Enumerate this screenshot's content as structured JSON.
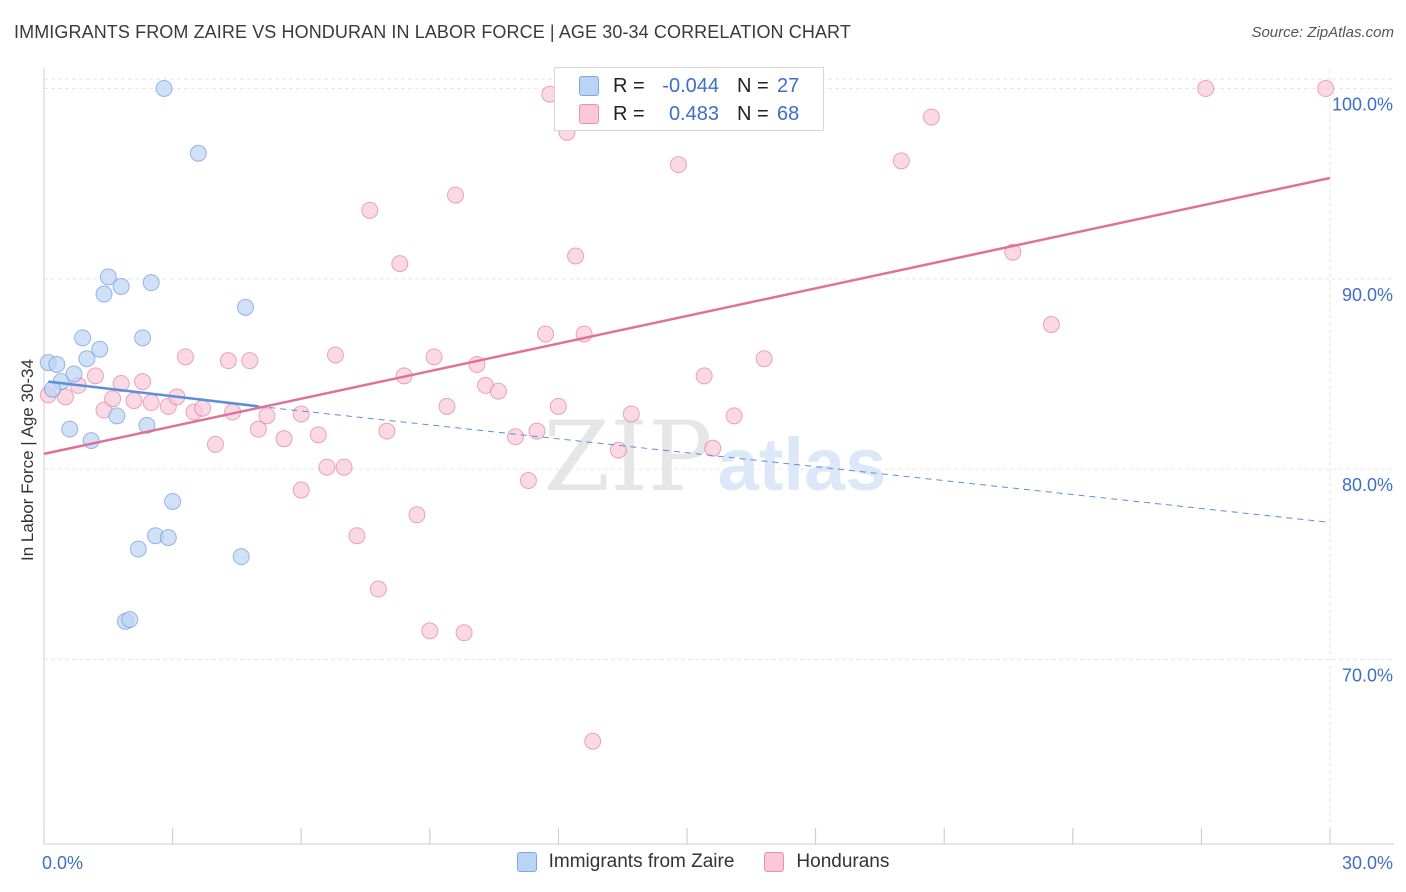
{
  "title": "IMMIGRANTS FROM ZAIRE VS HONDURAN IN LABOR FORCE | AGE 30-34 CORRELATION CHART",
  "source": "Source: ZipAtlas.com",
  "watermark": {
    "zip": "ZIP",
    "atlas": "atlas"
  },
  "legend": {
    "rows": [
      {
        "r_label": "R =",
        "r_value": "-0.044",
        "n_label": "N =",
        "n_value": "27",
        "color": "#7aa8e6",
        "fill": "#bcd4f4"
      },
      {
        "r_label": "R =",
        "r_value": "0.483",
        "n_label": "N =",
        "n_value": "68",
        "color": "#ef8fb0",
        "fill": "#f9c9d9"
      }
    ]
  },
  "bottom_legend": [
    "Immigrants from Zaire",
    "Hondurans"
  ],
  "chart_data": {
    "type": "scatter",
    "title": "IMMIGRANTS FROM ZAIRE VS HONDURAN IN LABOR FORCE | AGE 30-34 CORRELATION CHART",
    "xlabel": "",
    "ylabel": "In Labor Force | Age 30-34",
    "xlim": [
      0,
      30
    ],
    "ylim": [
      60.3,
      101.5
    ],
    "x_tick_labels": [
      {
        "value": 0,
        "label": "0.0%"
      },
      {
        "value": 30,
        "label": "30.0%"
      }
    ],
    "y_tick_labels": [
      {
        "value": 70,
        "label": "70.0%"
      },
      {
        "value": 80,
        "label": "80.0%"
      },
      {
        "value": 90,
        "label": "90.0%"
      },
      {
        "value": 100,
        "label": "100.0%"
      }
    ],
    "grid": true,
    "series": [
      {
        "name": "Immigrants from Zaire",
        "color": "#5b8fd9",
        "fill": "#bcd4f4",
        "trend": {
          "x": [
            0.1,
            5.0
          ],
          "y": [
            84.6,
            83.3
          ],
          "extended_to": [
            30.0,
            77.2
          ]
        },
        "points": [
          [
            0.1,
            85.6
          ],
          [
            0.3,
            85.5
          ],
          [
            0.4,
            84.6
          ],
          [
            0.6,
            82.1
          ],
          [
            0.7,
            85.0
          ],
          [
            0.9,
            86.9
          ],
          [
            1.0,
            85.8
          ],
          [
            1.1,
            81.5
          ],
          [
            1.3,
            86.3
          ],
          [
            1.4,
            89.2
          ],
          [
            1.5,
            90.1
          ],
          [
            1.7,
            82.8
          ],
          [
            1.8,
            89.6
          ],
          [
            1.9,
            72.0
          ],
          [
            2.0,
            72.1
          ],
          [
            2.2,
            75.8
          ],
          [
            2.3,
            86.9
          ],
          [
            2.4,
            82.3
          ],
          [
            2.5,
            89.8
          ],
          [
            2.6,
            76.5
          ],
          [
            2.8,
            100.0
          ],
          [
            2.9,
            76.4
          ],
          [
            3.0,
            78.3
          ],
          [
            3.6,
            96.6
          ],
          [
            4.6,
            75.4
          ],
          [
            4.7,
            88.5
          ],
          [
            0.2,
            84.2
          ]
        ]
      },
      {
        "name": "Hondurans",
        "color": "#e07099",
        "fill": "#f9c9d9",
        "trend": {
          "x": [
            0.0,
            30.0
          ],
          "y": [
            80.8,
            95.3
          ]
        },
        "points": [
          [
            0.1,
            83.9
          ],
          [
            0.5,
            83.8
          ],
          [
            0.8,
            84.4
          ],
          [
            1.2,
            84.9
          ],
          [
            1.4,
            83.1
          ],
          [
            1.6,
            83.7
          ],
          [
            1.8,
            84.5
          ],
          [
            2.1,
            83.6
          ],
          [
            2.3,
            84.6
          ],
          [
            2.5,
            83.5
          ],
          [
            2.9,
            83.3
          ],
          [
            3.1,
            83.8
          ],
          [
            3.3,
            85.9
          ],
          [
            3.5,
            83.0
          ],
          [
            3.7,
            83.2
          ],
          [
            4.0,
            81.3
          ],
          [
            4.3,
            85.7
          ],
          [
            4.4,
            83.0
          ],
          [
            4.8,
            85.7
          ],
          [
            5.0,
            82.1
          ],
          [
            5.2,
            82.8
          ],
          [
            5.6,
            81.6
          ],
          [
            6.0,
            78.9
          ],
          [
            6.0,
            82.9
          ],
          [
            6.4,
            81.8
          ],
          [
            6.6,
            80.1
          ],
          [
            6.8,
            86.0
          ],
          [
            7.0,
            80.1
          ],
          [
            7.3,
            76.5
          ],
          [
            7.6,
            93.6
          ],
          [
            7.8,
            73.7
          ],
          [
            8.0,
            82.0
          ],
          [
            8.3,
            90.8
          ],
          [
            8.4,
            84.9
          ],
          [
            8.7,
            77.6
          ],
          [
            9.1,
            85.9
          ],
          [
            9.4,
            83.3
          ],
          [
            9.6,
            94.4
          ],
          [
            9.8,
            71.4
          ],
          [
            10.1,
            85.5
          ],
          [
            10.3,
            84.4
          ],
          [
            10.6,
            84.1
          ],
          [
            11.0,
            81.7
          ],
          [
            11.3,
            79.4
          ],
          [
            11.5,
            82.0
          ],
          [
            11.7,
            87.1
          ],
          [
            11.8,
            99.7
          ],
          [
            12.0,
            83.3
          ],
          [
            12.2,
            97.7
          ],
          [
            12.4,
            91.2
          ],
          [
            12.6,
            87.1
          ],
          [
            12.8,
            65.7
          ],
          [
            13.4,
            81.0
          ],
          [
            13.7,
            82.9
          ],
          [
            14.8,
            96.0
          ],
          [
            15.4,
            84.9
          ],
          [
            15.6,
            81.1
          ],
          [
            16.1,
            82.8
          ],
          [
            16.8,
            85.8
          ],
          [
            20.0,
            96.2
          ],
          [
            20.7,
            98.5
          ],
          [
            22.6,
            91.4
          ],
          [
            23.5,
            87.6
          ],
          [
            27.1,
            100.0
          ],
          [
            29.9,
            100.0
          ],
          [
            15.0,
            99.5
          ],
          [
            14.7,
            99.5
          ],
          [
            9.0,
            71.5
          ]
        ]
      }
    ]
  }
}
